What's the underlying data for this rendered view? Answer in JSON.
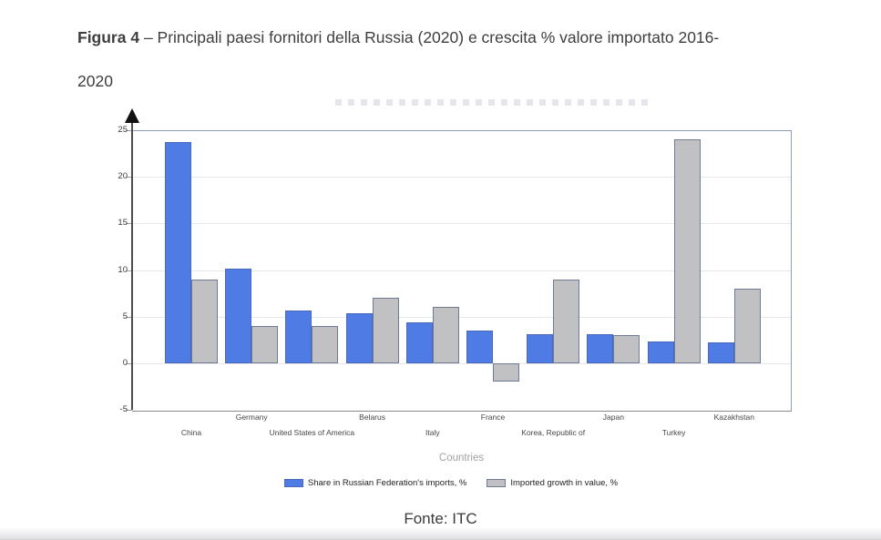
{
  "caption": {
    "bold": "Figura 4",
    "rest": " – Principali paesi fornitori della Russia (2020) e crescita % valore importato 2016-",
    "line2": "2020"
  },
  "source": {
    "label": "Fonte: ITC"
  },
  "chart_data": {
    "type": "bar",
    "title": "",
    "xlabel": "Countries",
    "ylabel": "",
    "ylim": [
      -5,
      25
    ],
    "yticks": [
      25,
      20,
      15,
      10,
      5,
      0,
      -5
    ],
    "grid": true,
    "legend_position": "bottom",
    "categories": [
      "China",
      "Germany",
      "United States of America",
      "Belarus",
      "Italy",
      "France",
      "Korea, Republic of",
      "Japan",
      "Turkey",
      "Kazakhstan"
    ],
    "series": [
      {
        "name": "Share in Russian Federation's imports, %",
        "color": "#4e7ce4",
        "border_color": "#4a69bb",
        "values": [
          23.7,
          10.1,
          5.7,
          5.4,
          4.4,
          3.5,
          3.1,
          3.1,
          2.3,
          2.2
        ]
      },
      {
        "name": "Imported growth in value, %",
        "color": "#c1c1c3",
        "border_color": "#6f7b96",
        "values": [
          9,
          4,
          4,
          7,
          6,
          -2,
          9,
          3,
          24,
          8
        ]
      }
    ]
  }
}
